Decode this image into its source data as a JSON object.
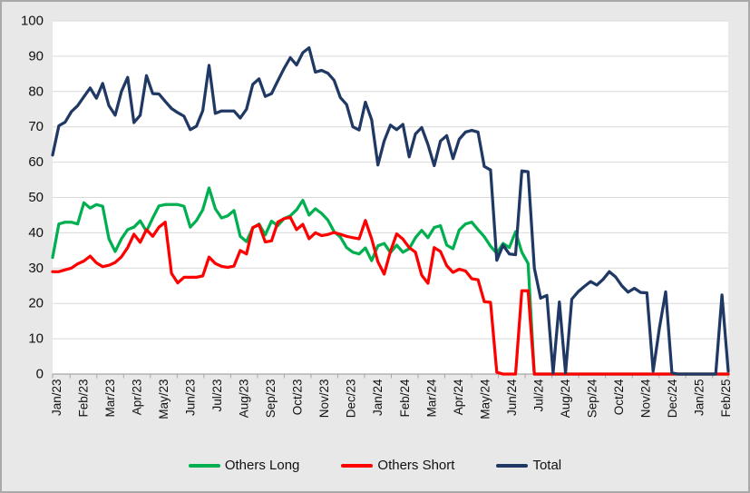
{
  "chart_data": {
    "type": "line",
    "title": "",
    "xlabel": "",
    "ylabel": "",
    "x_axis": {
      "labels": [
        "Jan/23",
        "Feb/23",
        "Mar/23",
        "Apr/23",
        "May/23",
        "Jun/23",
        "Jul/23",
        "Aug/23",
        "Sep/23",
        "Oct/23",
        "Nov/23",
        "Dec/23",
        "Jan/24",
        "Feb/24",
        "Mar/24",
        "Apr/24",
        "May/24",
        "Jun/24",
        "Jul/24",
        "Aug/24",
        "Sep/24",
        "Oct/24",
        "Nov/24",
        "Dec/24",
        "Jan/25",
        "Feb/25"
      ],
      "label_rotation_deg": -90,
      "points_per_series": 109,
      "frequency": "weekly"
    },
    "y_axis": {
      "min": 0,
      "max": 100,
      "step": 10,
      "ticks": [
        0,
        10,
        20,
        30,
        40,
        50,
        60,
        70,
        80,
        90,
        100
      ]
    },
    "grid": "horizontal",
    "grid_color": "#d9d9d9",
    "axis_color": "#a6a6a6",
    "plot_background": "#ffffff",
    "chart_background": "#e9e8e8",
    "legend_position": "bottom",
    "series": [
      {
        "name": "Others Long",
        "color": "#00B050",
        "values": [
          33,
          42.5,
          43,
          43,
          42.5,
          48.5,
          47,
          48,
          47.5,
          38.3,
          34.7,
          38.3,
          40.9,
          41.6,
          43.4,
          40.4,
          44.2,
          47.6,
          48,
          48,
          48,
          47.5,
          41.6,
          43.5,
          46.5,
          52.7,
          46.8,
          44.2,
          44.8,
          46.3,
          39,
          37.5,
          41.4,
          42.5,
          39.4,
          43.3,
          42,
          44,
          44.8,
          46.5,
          49.2,
          45,
          46.8,
          45.5,
          43.6,
          40.3,
          38.8,
          35.8,
          34.5,
          34,
          35.7,
          32.1,
          36.3,
          37,
          34.4,
          36.5,
          34.5,
          35.5,
          38.6,
          40.7,
          38.6,
          41.5,
          42,
          36.5,
          35.5,
          40.8,
          42.5,
          43,
          40.9,
          38.9,
          36.2,
          34.2,
          37,
          35.8,
          40.3,
          34.5,
          31.3,
          0,
          0,
          0,
          0,
          0,
          0,
          0,
          0,
          0,
          0,
          0,
          0,
          0,
          0,
          0,
          0,
          0,
          0,
          0,
          0,
          0,
          0,
          0,
          0,
          0,
          0,
          0,
          0,
          0,
          0,
          0,
          0
        ]
      },
      {
        "name": "Others Short",
        "color": "#FF0000",
        "values": [
          29,
          29,
          29.5,
          30,
          31.2,
          32,
          33.4,
          31.5,
          30.4,
          30.8,
          31.6,
          33.2,
          35.8,
          39.6,
          37.3,
          40.9,
          39,
          41.6,
          43,
          28.5,
          25.8,
          27.4,
          27.4,
          27.4,
          27.8,
          33.1,
          31.3,
          30.5,
          30.2,
          30.6,
          35,
          34,
          41.5,
          42.3,
          37.4,
          37.7,
          43,
          44,
          44.4,
          40.9,
          42.4,
          38.3,
          40,
          39.2,
          39.5,
          40.1,
          39.6,
          39,
          38.6,
          38.3,
          43.5,
          38.3,
          31.8,
          28.3,
          34.7,
          39.7,
          38.2,
          35.8,
          34.5,
          28,
          25.7,
          35.8,
          34.7,
          30.7,
          28.8,
          29.7,
          29.2,
          27,
          26.7,
          20.5,
          20.3,
          0.5,
          0,
          0,
          0,
          23.6,
          23.6,
          0,
          0,
          0,
          0,
          0,
          0,
          0,
          0,
          0,
          0,
          0,
          0,
          0,
          0,
          0,
          0,
          0,
          0,
          0,
          0,
          0,
          0,
          0,
          0,
          0,
          0,
          0,
          0,
          0,
          0,
          0,
          0
        ]
      },
      {
        "name": "Total",
        "color": "#1F3864",
        "values": [
          62,
          70.3,
          71.3,
          74.3,
          76,
          78.5,
          81,
          78.1,
          82.3,
          76,
          73.3,
          80,
          84,
          71.2,
          73.3,
          84.5,
          79.4,
          79.3,
          77.2,
          75.2,
          74,
          73,
          69.2,
          70.2,
          74.6,
          87.4,
          73.8,
          74.5,
          74.5,
          74.5,
          72.5,
          75,
          82,
          83.6,
          78.6,
          79.4,
          83,
          86.5,
          89.6,
          87.5,
          91,
          92.4,
          85.5,
          86,
          85.2,
          83.2,
          78.3,
          76.3,
          70,
          69.1,
          77,
          72,
          59.2,
          66,
          70.5,
          69.2,
          70.7,
          61.5,
          68,
          69.8,
          65,
          59,
          66,
          67.5,
          61,
          66.5,
          68.5,
          69,
          68.5,
          58.8,
          57.8,
          32.2,
          36.5,
          34,
          33.8,
          57.5,
          57.3,
          30,
          21.5,
          22.3,
          0.3,
          20.4,
          0.3,
          21.2,
          23.3,
          24.8,
          26.2,
          25.2,
          26.8,
          29,
          27.5,
          25,
          23.2,
          24.3,
          23.1,
          23,
          0.8,
          13,
          23.3,
          0.3,
          0,
          0,
          0,
          0,
          0,
          0,
          0,
          22.4,
          0.8
        ]
      }
    ],
    "draw_order": [
      "Others Long",
      "Others Short",
      "Total"
    ]
  },
  "legend": {
    "items": [
      {
        "label": "Others Long",
        "color": "#00B050"
      },
      {
        "label": "Others Short",
        "color": "#FF0000"
      },
      {
        "label": "Total",
        "color": "#1F3864"
      }
    ]
  }
}
